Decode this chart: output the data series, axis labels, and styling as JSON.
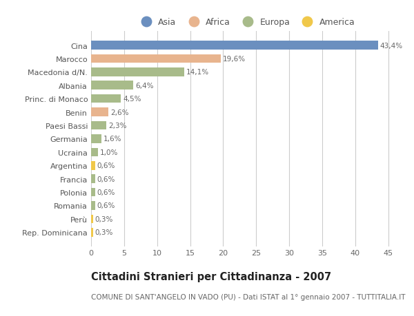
{
  "countries": [
    "Cina",
    "Marocco",
    "Macedonia d/N.",
    "Albania",
    "Princ. di Monaco",
    "Benin",
    "Paesi Bassi",
    "Germania",
    "Ucraina",
    "Argentina",
    "Francia",
    "Polonia",
    "Romania",
    "Perù",
    "Rep. Dominicana"
  ],
  "values": [
    43.4,
    19.6,
    14.1,
    6.4,
    4.5,
    2.6,
    2.3,
    1.6,
    1.0,
    0.6,
    0.6,
    0.6,
    0.6,
    0.3,
    0.3
  ],
  "labels": [
    "43,4%",
    "19,6%",
    "14,1%",
    "6,4%",
    "4,5%",
    "2,6%",
    "2,3%",
    "1,6%",
    "1,0%",
    "0,6%",
    "0,6%",
    "0,6%",
    "0,6%",
    "0,3%",
    "0,3%"
  ],
  "continents": [
    "Asia",
    "Africa",
    "Europa",
    "Europa",
    "Europa",
    "Africa",
    "Europa",
    "Europa",
    "Europa",
    "America",
    "Europa",
    "Europa",
    "Europa",
    "America",
    "America"
  ],
  "colors": {
    "Asia": "#6b8fbf",
    "Africa": "#e8b48e",
    "Europa": "#a8bb8a",
    "America": "#f0c84a"
  },
  "legend_order": [
    "Asia",
    "Africa",
    "Europa",
    "America"
  ],
  "title": "Cittadini Stranieri per Cittadinanza - 2007",
  "subtitle": "COMUNE DI SANT'ANGELO IN VADO (PU) - Dati ISTAT al 1° gennaio 2007 - TUTTITALIA.IT",
  "xlim": [
    0,
    47
  ],
  "xticks": [
    0,
    5,
    10,
    15,
    20,
    25,
    30,
    35,
    40,
    45
  ],
  "background_color": "#ffffff",
  "grid_color": "#cccccc",
  "bar_height": 0.65,
  "title_fontsize": 10.5,
  "subtitle_fontsize": 7.5,
  "label_fontsize": 7.5,
  "ytick_fontsize": 8,
  "xtick_fontsize": 8
}
